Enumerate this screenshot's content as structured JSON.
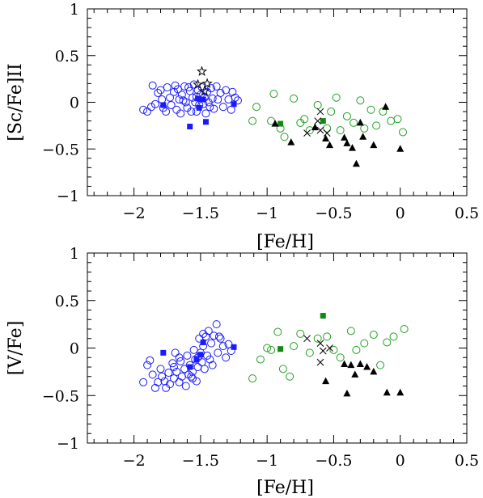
{
  "chart_data": [
    {
      "type": "scatter",
      "xlabel": "[Fe/H]",
      "ylabel": "[Sc/Fe]II",
      "xlim": [
        -2.35,
        0.5
      ],
      "ylim": [
        -1,
        1
      ],
      "xticks": [
        -2,
        -1.5,
        -1,
        -0.5,
        0,
        0.5
      ],
      "xtick_labels": [
        "−2",
        "−1.5",
        "−1",
        "−0.5",
        "0",
        "0.5"
      ],
      "yticks": [
        -1,
        -0.5,
        0,
        0.5,
        1
      ],
      "ytick_labels": [
        "−1",
        "−0.5",
        "0",
        "0.5",
        "1"
      ],
      "series": [
        {
          "marker": "open-circle",
          "color": "#1a1aff",
          "points": [
            [
              -1.93,
              -0.08
            ],
            [
              -1.9,
              -0.1
            ],
            [
              -1.87,
              -0.05
            ],
            [
              -1.86,
              0.18
            ],
            [
              -1.84,
              -0.02
            ],
            [
              -1.82,
              0.1
            ],
            [
              -1.8,
              0.13
            ],
            [
              -1.79,
              0.03
            ],
            [
              -1.78,
              -0.06
            ],
            [
              -1.76,
              -0.1
            ],
            [
              -1.75,
              0.16
            ],
            [
              -1.73,
              0.05
            ],
            [
              -1.72,
              -0.03
            ],
            [
              -1.7,
              0.11
            ],
            [
              -1.69,
              0.18
            ],
            [
              -1.68,
              -0.08
            ],
            [
              -1.66,
              0.03
            ],
            [
              -1.65,
              -0.12
            ],
            [
              -1.64,
              0.08
            ],
            [
              -1.62,
              0.17
            ],
            [
              -1.61,
              0.0
            ],
            [
              -1.6,
              -0.06
            ],
            [
              -1.58,
              0.12
            ],
            [
              -1.57,
              -0.1
            ],
            [
              -1.56,
              0.05
            ],
            [
              -1.55,
              0.19
            ],
            [
              -1.54,
              0.0
            ],
            [
              -1.53,
              -0.1
            ],
            [
              -1.52,
              0.13
            ],
            [
              -1.51,
              -0.03
            ],
            [
              -1.5,
              0.08
            ],
            [
              -1.49,
              0.16
            ],
            [
              -1.48,
              -0.02
            ],
            [
              -1.47,
              0.05
            ],
            [
              -1.46,
              -0.12
            ],
            [
              -1.45,
              0.11
            ],
            [
              -1.44,
              0.0
            ],
            [
              -1.42,
              0.15
            ],
            [
              -1.41,
              0.04
            ],
            [
              -1.4,
              -0.07
            ],
            [
              -1.38,
              0.17
            ],
            [
              -1.37,
              0.03
            ],
            [
              -1.35,
              0.1
            ],
            [
              -1.33,
              -0.05
            ],
            [
              -1.31,
              0.13
            ],
            [
              -1.29,
              0.03
            ],
            [
              -1.27,
              -0.08
            ],
            [
              -1.26,
              0.11
            ],
            [
              -1.24,
              0.05
            ],
            [
              -1.22,
              0.02
            ],
            [
              -1.63,
              0.02
            ],
            [
              -1.67,
              0.14
            ],
            [
              -1.59,
              0.16
            ],
            [
              -1.43,
              -0.05
            ],
            [
              -1.53,
              0.06
            ]
          ]
        },
        {
          "marker": "filled-square",
          "color": "#1a1aff",
          "points": [
            [
              -1.78,
              -0.03
            ],
            [
              -1.58,
              -0.26
            ],
            [
              -1.52,
              0.04
            ],
            [
              -1.51,
              -0.06
            ],
            [
              -1.48,
              0.03
            ],
            [
              -1.46,
              -0.21
            ],
            [
              -1.25,
              -0.02
            ]
          ]
        },
        {
          "marker": "open-star",
          "color": "#000000",
          "points": [
            [
              -1.49,
              0.33
            ],
            [
              -1.52,
              0.19
            ],
            [
              -1.45,
              0.2
            ],
            [
              -1.47,
              0.12
            ]
          ]
        },
        {
          "marker": "open-circle",
          "color": "#22a022",
          "points": [
            [
              -1.11,
              -0.2
            ],
            [
              -1.08,
              -0.05
            ],
            [
              -0.97,
              -0.2
            ],
            [
              -0.95,
              0.09
            ],
            [
              -0.9,
              -0.28
            ],
            [
              -0.87,
              -0.37
            ],
            [
              -0.8,
              0.04
            ],
            [
              -0.75,
              -0.22
            ],
            [
              -0.72,
              -0.18
            ],
            [
              -0.68,
              -0.3
            ],
            [
              -0.62,
              -0.03
            ],
            [
              -0.55,
              -0.28
            ],
            [
              -0.52,
              -0.1
            ],
            [
              -0.48,
              0.05
            ],
            [
              -0.45,
              -0.3
            ],
            [
              -0.4,
              -0.15
            ],
            [
              -0.35,
              -0.22
            ],
            [
              -0.3,
              0.02
            ],
            [
              -0.27,
              -0.28
            ],
            [
              -0.22,
              -0.08
            ],
            [
              -0.18,
              -0.25
            ],
            [
              -0.13,
              -0.1
            ],
            [
              -0.07,
              -0.2
            ],
            [
              -0.02,
              -0.18
            ],
            [
              0.02,
              -0.32
            ]
          ]
        },
        {
          "marker": "filled-square",
          "color": "#118811",
          "points": [
            [
              -0.9,
              -0.23
            ],
            [
              -0.58,
              -0.2
            ]
          ]
        },
        {
          "marker": "cross",
          "color": "#000000",
          "points": [
            [
              -0.6,
              -0.1
            ],
            [
              -0.7,
              -0.33
            ],
            [
              -0.6,
              -0.3
            ],
            [
              -0.55,
              -0.33
            ],
            [
              -0.62,
              -0.2
            ]
          ]
        },
        {
          "marker": "filled-triangle",
          "color": "#000000",
          "points": [
            [
              -0.94,
              -0.23
            ],
            [
              -0.82,
              -0.43
            ],
            [
              -0.64,
              -0.27
            ],
            [
              -0.56,
              -0.39
            ],
            [
              -0.53,
              -0.46
            ],
            [
              -0.42,
              -0.38
            ],
            [
              -0.4,
              -0.44
            ],
            [
              -0.36,
              -0.49
            ],
            [
              -0.33,
              -0.66
            ],
            [
              -0.3,
              -0.22
            ],
            [
              -0.28,
              -0.37
            ],
            [
              -0.2,
              -0.46
            ],
            [
              -0.11,
              -0.05
            ],
            [
              0.0,
              -0.5
            ]
          ]
        }
      ]
    },
    {
      "type": "scatter",
      "xlabel": "[Fe/H]",
      "ylabel": "[V/Fe]",
      "xlim": [
        -2.35,
        0.5
      ],
      "ylim": [
        -1,
        1
      ],
      "xticks": [
        -2,
        -1.5,
        -1,
        -0.5,
        0,
        0.5
      ],
      "xtick_labels": [
        "−2",
        "−1.5",
        "−1",
        "−0.5",
        "0",
        "0.5"
      ],
      "yticks": [
        -1,
        -0.5,
        0,
        0.5,
        1
      ],
      "ytick_labels": [
        "−1",
        "−0.5",
        "0",
        "0.5",
        "1"
      ],
      "series": [
        {
          "marker": "open-circle",
          "color": "#1a1aff",
          "points": [
            [
              -1.93,
              -0.36
            ],
            [
              -1.9,
              -0.18
            ],
            [
              -1.88,
              -0.13
            ],
            [
              -1.86,
              -0.28
            ],
            [
              -1.84,
              -0.42
            ],
            [
              -1.82,
              -0.36
            ],
            [
              -1.8,
              -0.22
            ],
            [
              -1.79,
              -0.3
            ],
            [
              -1.77,
              -0.35
            ],
            [
              -1.76,
              -0.42
            ],
            [
              -1.74,
              -0.26
            ],
            [
              -1.73,
              -0.38
            ],
            [
              -1.71,
              -0.16
            ],
            [
              -1.7,
              -0.32
            ],
            [
              -1.69,
              -0.05
            ],
            [
              -1.68,
              -0.25
            ],
            [
              -1.66,
              -0.36
            ],
            [
              -1.65,
              -0.14
            ],
            [
              -1.64,
              -0.3
            ],
            [
              -1.62,
              -0.22
            ],
            [
              -1.61,
              -0.4
            ],
            [
              -1.6,
              -0.08
            ],
            [
              -1.58,
              -0.18
            ],
            [
              -1.57,
              -0.3
            ],
            [
              -1.56,
              -0.25
            ],
            [
              -1.55,
              -0.02
            ],
            [
              -1.54,
              -0.12
            ],
            [
              -1.53,
              -0.35
            ],
            [
              -1.52,
              -0.2
            ],
            [
              -1.51,
              0.1
            ],
            [
              -1.5,
              -0.05
            ],
            [
              -1.49,
              -0.15
            ],
            [
              -1.48,
              0.02
            ],
            [
              -1.47,
              -0.22
            ],
            [
              -1.46,
              0.12
            ],
            [
              -1.45,
              -0.08
            ],
            [
              -1.44,
              0.18
            ],
            [
              -1.42,
              0.05
            ],
            [
              -1.41,
              -0.18
            ],
            [
              -1.4,
              0.13
            ],
            [
              -1.38,
              0.25
            ],
            [
              -1.37,
              -0.05
            ],
            [
              -1.35,
              0.1
            ],
            [
              -1.33,
              0.02
            ],
            [
              -1.31,
              -0.1
            ],
            [
              -1.29,
              0.04
            ],
            [
              -1.27,
              -0.03
            ],
            [
              -1.7,
              -0.2
            ],
            [
              -1.59,
              -0.28
            ],
            [
              -1.52,
              -0.1
            ],
            [
              -1.43,
              -0.12
            ],
            [
              -1.66,
              -0.1
            ],
            [
              -1.48,
              0.15
            ],
            [
              -1.56,
              -0.32
            ],
            [
              -1.36,
              0.12
            ]
          ]
        },
        {
          "marker": "filled-square",
          "color": "#1a1aff",
          "points": [
            [
              -1.78,
              -0.05
            ],
            [
              -1.58,
              -0.2
            ],
            [
              -1.53,
              -0.12
            ],
            [
              -1.5,
              -0.07
            ],
            [
              -1.48,
              0.06
            ],
            [
              -1.25,
              0.01
            ]
          ]
        },
        {
          "marker": "open-circle",
          "color": "#22a022",
          "points": [
            [
              -1.11,
              -0.32
            ],
            [
              -1.05,
              -0.12
            ],
            [
              -1.0,
              0.0
            ],
            [
              -0.97,
              -0.02
            ],
            [
              -0.92,
              0.17
            ],
            [
              -0.88,
              -0.22
            ],
            [
              -0.83,
              -0.3
            ],
            [
              -0.8,
              0.02
            ],
            [
              -0.75,
              0.15
            ],
            [
              -0.68,
              -0.05
            ],
            [
              -0.62,
              0.1
            ],
            [
              -0.55,
              0.12
            ],
            [
              -0.5,
              -0.02
            ],
            [
              -0.45,
              -0.1
            ],
            [
              -0.37,
              0.18
            ],
            [
              -0.33,
              -0.02
            ],
            [
              -0.27,
              0.05
            ],
            [
              -0.2,
              0.14
            ],
            [
              -0.15,
              -0.18
            ],
            [
              -0.1,
              0.06
            ],
            [
              -0.05,
              0.12
            ],
            [
              0.03,
              0.2
            ]
          ]
        },
        {
          "marker": "filled-square",
          "color": "#118811",
          "points": [
            [
              -0.9,
              -0.01
            ],
            [
              -0.58,
              0.34
            ]
          ]
        },
        {
          "marker": "cross",
          "color": "#000000",
          "points": [
            [
              -0.7,
              0.1
            ],
            [
              -0.6,
              0.05
            ],
            [
              -0.58,
              -0.03
            ],
            [
              -0.53,
              0.0
            ],
            [
              -0.6,
              -0.15
            ]
          ]
        },
        {
          "marker": "filled-triangle",
          "color": "#000000",
          "points": [
            [
              -0.56,
              -0.35
            ],
            [
              -0.42,
              -0.17
            ],
            [
              -0.4,
              -0.48
            ],
            [
              -0.37,
              -0.18
            ],
            [
              -0.34,
              -0.28
            ],
            [
              -0.3,
              -0.17
            ],
            [
              -0.25,
              -0.2
            ],
            [
              -0.2,
              -0.25
            ],
            [
              -0.1,
              -0.47
            ],
            [
              0.0,
              -0.47
            ]
          ]
        }
      ]
    }
  ]
}
